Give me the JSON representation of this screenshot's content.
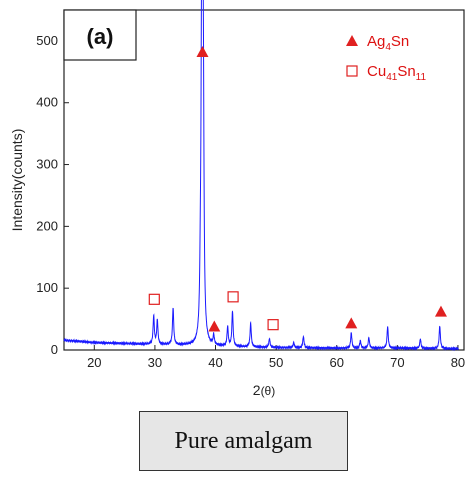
{
  "chart_data": {
    "type": "line",
    "panel_label": "(a)",
    "xlabel_main": "2",
    "xlabel_paren": "(θ)",
    "ylabel": "Intensity(counts)",
    "xlim": [
      15,
      81
    ],
    "ylim": [
      0,
      550
    ],
    "xticks": [
      20,
      30,
      40,
      50,
      60,
      70,
      80
    ],
    "yticks": [
      0,
      100,
      200,
      300,
      400,
      500
    ],
    "series": [
      {
        "color": "#1a1aff",
        "baseline": [
          [
            15,
            16
          ],
          [
            20,
            12
          ],
          [
            30,
            9
          ],
          [
            40,
            6
          ],
          [
            50,
            4
          ],
          [
            60,
            3
          ],
          [
            70,
            3
          ],
          [
            80,
            2
          ]
        ],
        "peaks": [
          {
            "x": 29.8,
            "y": 55
          },
          {
            "x": 30.4,
            "y": 48
          },
          {
            "x": 33.0,
            "y": 68
          },
          {
            "x": 37.5,
            "y": 75
          },
          {
            "x": 37.7,
            "y": 385
          },
          {
            "x": 37.85,
            "y": 470
          },
          {
            "x": 38.0,
            "y": 300
          },
          {
            "x": 39.7,
            "y": 22
          },
          {
            "x": 42.0,
            "y": 37
          },
          {
            "x": 42.8,
            "y": 62
          },
          {
            "x": 45.8,
            "y": 43
          },
          {
            "x": 48.9,
            "y": 18
          },
          {
            "x": 52.9,
            "y": 12
          },
          {
            "x": 54.5,
            "y": 22
          },
          {
            "x": 62.4,
            "y": 28
          },
          {
            "x": 63.9,
            "y": 15
          },
          {
            "x": 65.3,
            "y": 20
          },
          {
            "x": 68.4,
            "y": 38
          },
          {
            "x": 73.8,
            "y": 18
          },
          {
            "x": 77.0,
            "y": 39
          }
        ]
      }
    ],
    "markers": [
      {
        "phase": "Ag4Sn",
        "shape": "triangle",
        "x": 37.85,
        "y": 482
      },
      {
        "phase": "Ag4Sn",
        "shape": "triangle",
        "x": 39.8,
        "y": 38
      },
      {
        "phase": "Ag4Sn",
        "shape": "triangle",
        "x": 62.4,
        "y": 43
      },
      {
        "phase": "Ag4Sn",
        "shape": "triangle",
        "x": 77.2,
        "y": 62
      },
      {
        "phase": "Cu41Sn11",
        "shape": "square",
        "x": 29.9,
        "y": 82
      },
      {
        "phase": "Cu41Sn11",
        "shape": "square",
        "x": 42.9,
        "y": 86
      },
      {
        "phase": "Cu41Sn11",
        "shape": "square",
        "x": 49.5,
        "y": 41
      }
    ],
    "legend": {
      "position": "top-right",
      "color": "#e02020",
      "entries": [
        {
          "shape": "triangle",
          "base": "Ag",
          "sub1": "4",
          "mid": "Sn",
          "sub2": ""
        },
        {
          "shape": "square",
          "base": "Cu",
          "sub1": "41",
          "mid": "Sn",
          "sub2": "11"
        }
      ]
    }
  },
  "caption": "Pure amalgam"
}
